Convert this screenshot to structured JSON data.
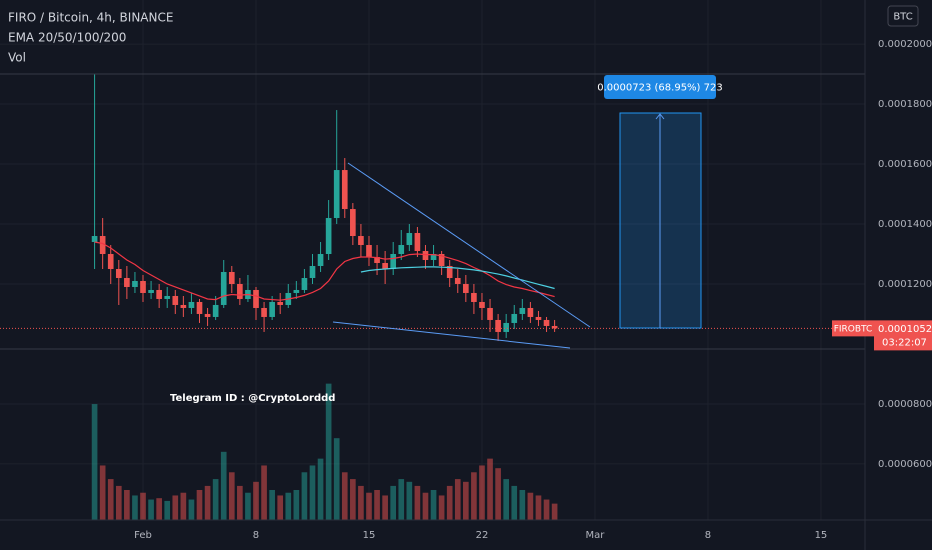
{
  "header": {
    "title": "FIRO / Bitcoin, 4h, BINANCE",
    "indicator": "EMA 20/50/100/200",
    "volume_label": "Vol",
    "currency_button": "BTC"
  },
  "annotations": {
    "telegram": "Telegram ID : @CryptoLorddd",
    "position_label": "0.0000723 (68.95%) 723",
    "symbol_tag": "FIROBTC",
    "countdown": "03:22:07"
  },
  "chart_data": {
    "type": "candlestick",
    "x": [
      -2,
      -1.5,
      -1,
      -0.5,
      0,
      0.5,
      1,
      1.5,
      2,
      2.5,
      3,
      3.5,
      4,
      4.5,
      5,
      5.5,
      6,
      6.5,
      7,
      7.5,
      8,
      8.5,
      9,
      9.5,
      10,
      10.5,
      11,
      11.5,
      12,
      12.5,
      13,
      13.5,
      14,
      14.5,
      15,
      15.5,
      16,
      16.5,
      17,
      17.5,
      18,
      18.5,
      19,
      19.5,
      20,
      20.5,
      21,
      21.5,
      22,
      22.5,
      23,
      23.5,
      24,
      24.5,
      25,
      25.5,
      26,
      26.5
    ],
    "open": [
      0.000134,
      0.000136,
      0.00013,
      0.000125,
      0.000122,
      0.000119,
      0.000121,
      0.000117,
      0.000118,
      0.000115,
      0.000116,
      0.000113,
      0.000112,
      0.000114,
      0.00011,
      0.000109,
      0.000113,
      0.000124,
      0.00012,
      0.000115,
      0.000118,
      0.000112,
      0.000109,
      0.000114,
      0.000113,
      0.000117,
      0.000118,
      0.000122,
      0.000126,
      0.00013,
      0.000142,
      0.000158,
      0.000145,
      0.000136,
      0.000133,
      0.000129,
      0.000127,
      0.000125,
      0.00013,
      0.000133,
      0.000137,
      0.000131,
      0.000128,
      0.00013,
      0.000126,
      0.000122,
      0.00012,
      0.000117,
      0.000114,
      0.000112,
      0.000108,
      0.000104,
      0.000107,
      0.00011,
      0.000112,
      0.000109,
      0.000108,
      0.000106
    ],
    "high": [
      0.00019,
      0.000142,
      0.000133,
      0.000128,
      0.000126,
      0.000124,
      0.000123,
      0.000121,
      0.00012,
      0.000119,
      0.000118,
      0.000116,
      0.000117,
      0.000115,
      0.000112,
      0.000116,
      0.000128,
      0.000126,
      0.000122,
      0.000123,
      0.000119,
      0.000114,
      0.000116,
      0.000117,
      0.00012,
      0.000121,
      0.000125,
      0.00013,
      0.000134,
      0.000148,
      0.000178,
      0.000162,
      0.000147,
      0.00014,
      0.000136,
      0.000133,
      0.000131,
      0.000134,
      0.000138,
      0.00014,
      0.000139,
      0.000133,
      0.000133,
      0.000131,
      0.000128,
      0.000125,
      0.000123,
      0.00012,
      0.000117,
      0.000115,
      0.00011,
      0.00011,
      0.000113,
      0.000115,
      0.000114,
      0.000111,
      0.000109,
      0.000108
    ],
    "low": [
      0.000125,
      0.000125,
      0.00012,
      0.000113,
      0.000115,
      0.000117,
      0.000114,
      0.000115,
      0.000112,
      0.000112,
      0.00011,
      0.000109,
      0.00011,
      0.000107,
      0.000106,
      0.000108,
      0.000112,
      0.000117,
      0.000113,
      0.000114,
      0.000108,
      0.000104,
      0.000108,
      0.00011,
      0.000112,
      0.000115,
      0.000117,
      0.00012,
      0.000124,
      0.000128,
      0.00014,
      0.000142,
      0.000133,
      0.000129,
      0.000126,
      0.000123,
      0.00012,
      0.000123,
      0.000128,
      0.000131,
      0.000129,
      0.000125,
      0.000126,
      0.000123,
      0.000119,
      0.000117,
      0.000114,
      0.00011,
      0.000108,
      0.000104,
      0.000101,
      0.000102,
      0.000105,
      0.000108,
      0.000107,
      0.000106,
      0.000104,
      0.000104
    ],
    "close": [
      0.000136,
      0.00013,
      0.000125,
      0.000122,
      0.000119,
      0.000121,
      0.000117,
      0.000118,
      0.000115,
      0.000116,
      0.000113,
      0.000112,
      0.000114,
      0.00011,
      0.000109,
      0.000113,
      0.000124,
      0.00012,
      0.000115,
      0.000118,
      0.000112,
      0.000109,
      0.000114,
      0.000113,
      0.000117,
      0.000118,
      0.000122,
      0.000126,
      0.00013,
      0.000142,
      0.000158,
      0.000145,
      0.000136,
      0.000133,
      0.000129,
      0.000127,
      0.000125,
      0.00013,
      0.000133,
      0.000137,
      0.000131,
      0.000128,
      0.00013,
      0.000126,
      0.000122,
      0.00012,
      0.000117,
      0.000114,
      0.000112,
      0.000108,
      0.000104,
      0.000107,
      0.00011,
      0.000112,
      0.000109,
      0.000108,
      0.000106,
      0.0001052
    ],
    "volume": [
      85,
      40,
      30,
      25,
      22,
      18,
      20,
      15,
      16,
      14,
      18,
      20,
      15,
      22,
      25,
      30,
      50,
      35,
      25,
      20,
      28,
      40,
      22,
      18,
      20,
      22,
      35,
      40,
      45,
      100,
      60,
      35,
      30,
      25,
      20,
      22,
      18,
      25,
      30,
      28,
      25,
      20,
      22,
      18,
      25,
      30,
      28,
      35,
      40,
      45,
      38,
      30,
      25,
      22,
      20,
      18,
      15,
      12
    ],
    "vlim": [
      0,
      110
    ],
    "ema_lines": [
      {
        "color": "#f23645",
        "values": [
          0.000134,
          0.0001335,
          0.000132,
          0.00013,
          0.000128,
          0.0001265,
          0.0001245,
          0.000123,
          0.0001215,
          0.00012,
          0.000119,
          0.000118,
          0.000117,
          0.000116,
          0.000115,
          0.0001148,
          0.000116,
          0.0001165,
          0.0001163,
          0.0001165,
          0.000116,
          0.000115,
          0.0001148,
          0.0001146,
          0.000115,
          0.0001155,
          0.0001162,
          0.0001172,
          0.0001185,
          0.000121,
          0.000125,
          0.0001275,
          0.0001285,
          0.000129,
          0.000129,
          0.0001288,
          0.0001283,
          0.0001285,
          0.000129,
          0.0001298,
          0.00013,
          0.0001298,
          0.0001298,
          0.0001294,
          0.0001286,
          0.0001278,
          0.0001268,
          0.0001255,
          0.0001243,
          0.0001228,
          0.000121,
          0.0001198,
          0.000119,
          0.0001185,
          0.0001178,
          0.0001172,
          0.0001165,
          0.0001158
        ]
      },
      {
        "color": "#4dd0e1",
        "values": [
          null,
          null,
          null,
          null,
          null,
          null,
          null,
          null,
          null,
          null,
          null,
          null,
          null,
          null,
          null,
          null,
          null,
          null,
          null,
          null,
          null,
          null,
          null,
          null,
          null,
          null,
          null,
          null,
          null,
          null,
          null,
          null,
          null,
          0.000124,
          0.0001245,
          0.0001248,
          0.000125,
          0.0001252,
          0.0001254,
          0.0001255,
          0.0001256,
          0.0001257,
          0.0001257,
          0.0001256,
          0.0001255,
          0.0001253,
          0.000125,
          0.0001247,
          0.0001243,
          0.0001238,
          0.0001233,
          0.0001227,
          0.000122,
          0.0001213,
          0.0001206,
          0.0001199,
          0.0001192,
          0.0001185
        ]
      }
    ],
    "up_color": "#26a69a",
    "down_color": "#ef5350",
    "xlim": [
      -7.86,
      45.73
    ],
    "xticks": [
      {
        "value": 1,
        "label": "Feb"
      },
      8,
      15,
      22,
      {
        "value": 29,
        "label": "Mar"
      },
      {
        "value": 36,
        "label": "8"
      },
      {
        "value": 43,
        "label": "15"
      }
    ],
    "ylim": [
      4.13e-05,
      0.0002147
    ],
    "yticks": [
      {
        "value": 6e-05,
        "label": "0.0000600"
      },
      {
        "value": 8e-05,
        "label": "0.0000800"
      },
      {
        "value": 0.00012,
        "label": "0.0001200"
      },
      {
        "value": 0.00014,
        "label": "0.0001400"
      },
      {
        "value": 0.00016,
        "label": "0.0001600"
      },
      {
        "value": 0.00018,
        "label": "0.0001800"
      },
      {
        "value": 0.0002,
        "label": "0.0002000"
      }
    ],
    "grid": true
  }
}
